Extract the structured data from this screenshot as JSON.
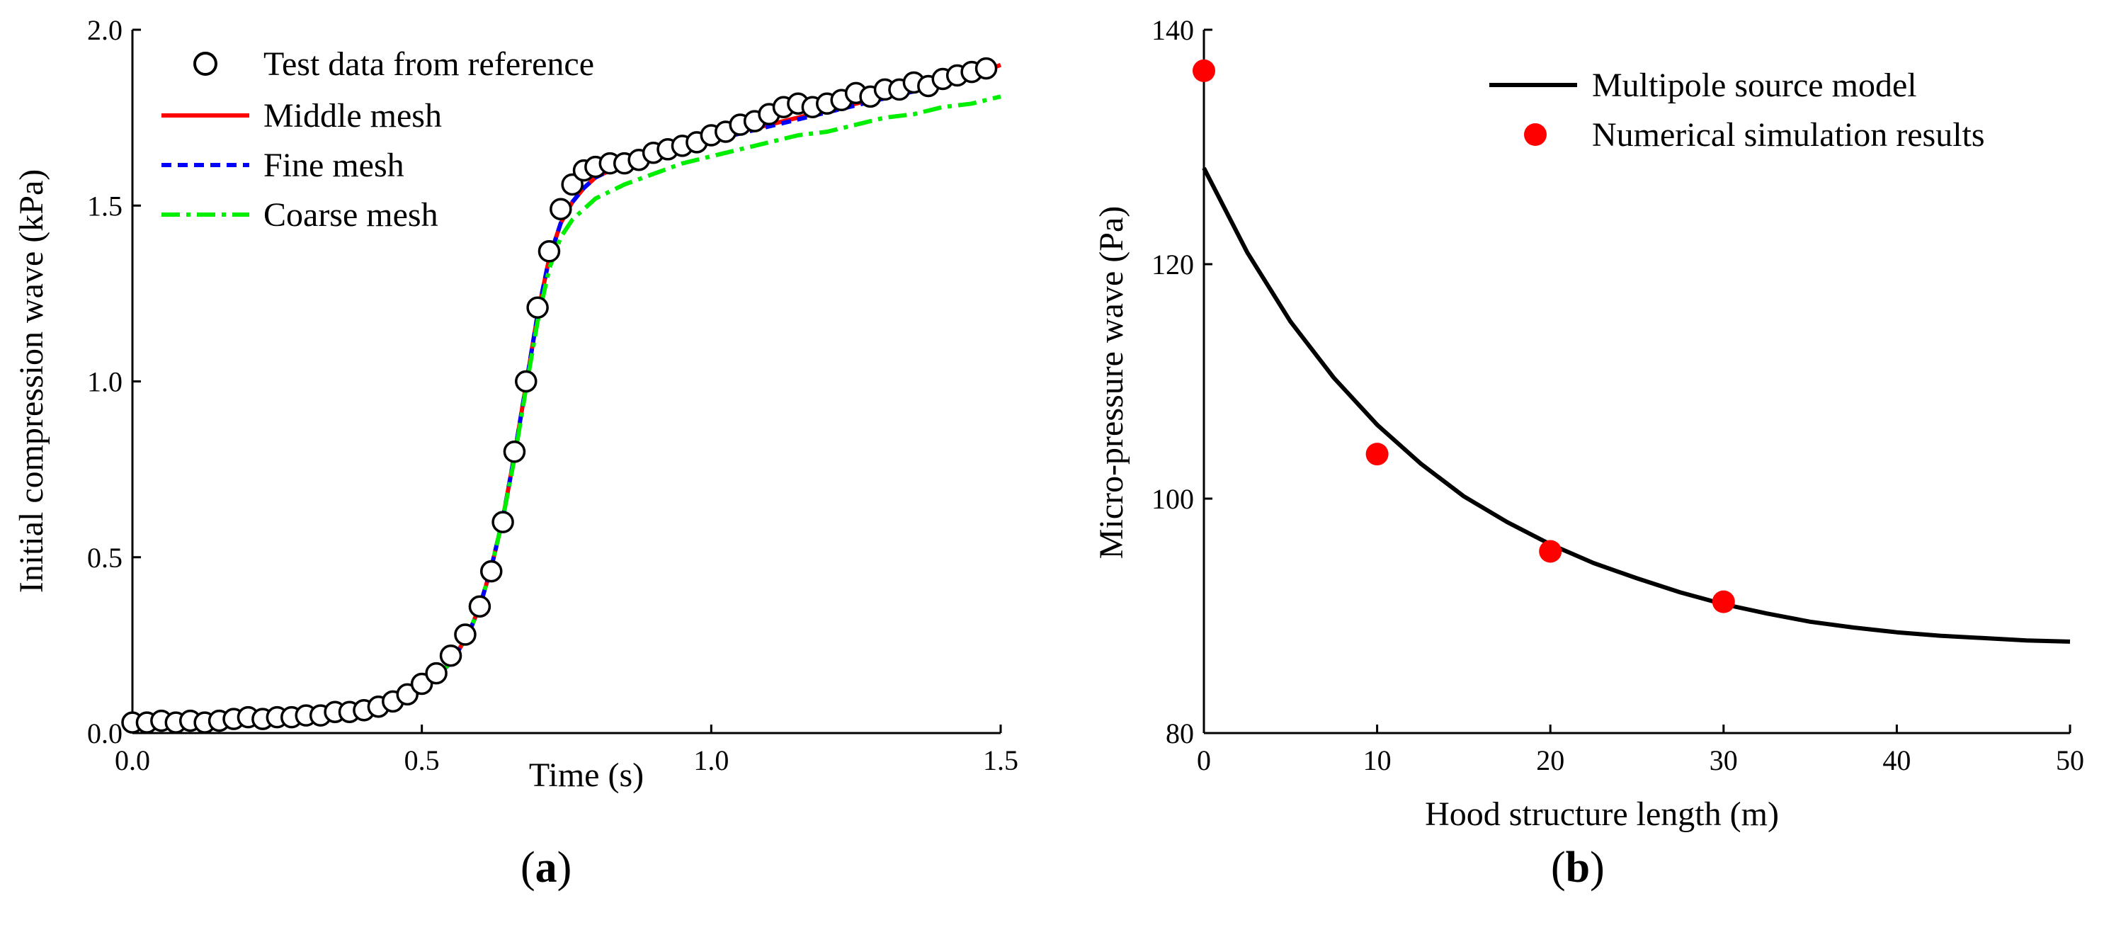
{
  "chart_data": [
    {
      "type": "line",
      "panel": "(a)",
      "panel_label_parts": [
        "(",
        "a",
        ")"
      ],
      "xlabel": "Time (s)",
      "ylabel": "Initial compression wave (kPa)",
      "xlim": [
        0,
        1.5
      ],
      "ylim": [
        0,
        2.0
      ],
      "xticks": [
        0,
        0.5,
        1.0,
        1.5
      ],
      "xtick_labels": [
        "0.0",
        "0.5",
        "1.0",
        "1.5"
      ],
      "yticks": [
        0,
        0.5,
        1.0,
        1.5,
        2.0
      ],
      "ytick_labels": [
        "0.0",
        "0.5",
        "1.0",
        "1.5",
        "2.0"
      ],
      "legend_position": "top-left",
      "series": [
        {
          "name": "Test data from reference",
          "style": "open-circle",
          "color": "#000000",
          "x": [
            0.0,
            0.025,
            0.05,
            0.075,
            0.1,
            0.125,
            0.15,
            0.175,
            0.2,
            0.225,
            0.25,
            0.275,
            0.3,
            0.325,
            0.35,
            0.375,
            0.4,
            0.425,
            0.45,
            0.475,
            0.5,
            0.525,
            0.55,
            0.575,
            0.6,
            0.62,
            0.64,
            0.66,
            0.68,
            0.7,
            0.72,
            0.74,
            0.76,
            0.78,
            0.8,
            0.825,
            0.85,
            0.875,
            0.9,
            0.925,
            0.95,
            0.975,
            1.0,
            1.025,
            1.05,
            1.075,
            1.1,
            1.125,
            1.15,
            1.175,
            1.2,
            1.225,
            1.25,
            1.275,
            1.3,
            1.325,
            1.35,
            1.375,
            1.4,
            1.425,
            1.45,
            1.475
          ],
          "y": [
            0.03,
            0.03,
            0.035,
            0.03,
            0.035,
            0.03,
            0.035,
            0.04,
            0.045,
            0.04,
            0.045,
            0.045,
            0.05,
            0.05,
            0.06,
            0.06,
            0.065,
            0.075,
            0.09,
            0.11,
            0.14,
            0.17,
            0.22,
            0.28,
            0.36,
            0.46,
            0.6,
            0.8,
            1.0,
            1.21,
            1.37,
            1.49,
            1.56,
            1.6,
            1.61,
            1.62,
            1.62,
            1.63,
            1.65,
            1.66,
            1.67,
            1.68,
            1.7,
            1.71,
            1.73,
            1.74,
            1.76,
            1.78,
            1.79,
            1.78,
            1.79,
            1.8,
            1.82,
            1.81,
            1.83,
            1.83,
            1.85,
            1.84,
            1.86,
            1.87,
            1.88,
            1.89
          ]
        },
        {
          "name": "Middle mesh",
          "style": "solid",
          "color": "#ff0000",
          "x": [
            0.0,
            0.05,
            0.1,
            0.15,
            0.2,
            0.25,
            0.3,
            0.35,
            0.4,
            0.45,
            0.5,
            0.55,
            0.58,
            0.6,
            0.62,
            0.64,
            0.66,
            0.68,
            0.7,
            0.72,
            0.74,
            0.76,
            0.78,
            0.8,
            0.85,
            0.9,
            0.95,
            1.0,
            1.05,
            1.1,
            1.15,
            1.2,
            1.25,
            1.3,
            1.35,
            1.4,
            1.45,
            1.5
          ],
          "y": [
            0.015,
            0.016,
            0.018,
            0.021,
            0.025,
            0.03,
            0.037,
            0.047,
            0.06,
            0.08,
            0.12,
            0.2,
            0.28,
            0.36,
            0.47,
            0.61,
            0.79,
            0.99,
            1.19,
            1.35,
            1.45,
            1.51,
            1.55,
            1.58,
            1.62,
            1.65,
            1.67,
            1.69,
            1.71,
            1.73,
            1.75,
            1.77,
            1.79,
            1.81,
            1.83,
            1.85,
            1.87,
            1.9
          ]
        },
        {
          "name": "Fine mesh",
          "style": "dashed",
          "color": "#0000ff",
          "x": [
            0.0,
            0.05,
            0.1,
            0.15,
            0.2,
            0.25,
            0.3,
            0.35,
            0.4,
            0.45,
            0.5,
            0.55,
            0.58,
            0.6,
            0.62,
            0.64,
            0.66,
            0.68,
            0.7,
            0.72,
            0.74,
            0.76,
            0.78,
            0.8,
            0.85,
            0.9,
            0.95,
            1.0,
            1.05,
            1.1,
            1.15,
            1.2,
            1.25,
            1.3,
            1.35,
            1.4,
            1.45,
            1.5
          ],
          "y": [
            0.015,
            0.016,
            0.018,
            0.021,
            0.025,
            0.03,
            0.037,
            0.047,
            0.06,
            0.08,
            0.12,
            0.2,
            0.28,
            0.36,
            0.47,
            0.61,
            0.79,
            0.99,
            1.19,
            1.35,
            1.45,
            1.51,
            1.55,
            1.58,
            1.62,
            1.645,
            1.665,
            1.685,
            1.705,
            1.725,
            1.745,
            1.765,
            1.785,
            1.805,
            1.825,
            1.845,
            1.865,
            1.89
          ]
        },
        {
          "name": "Coarse mesh",
          "style": "dash-dot",
          "color": "#00ee00",
          "x": [
            0.0,
            0.05,
            0.1,
            0.15,
            0.2,
            0.25,
            0.3,
            0.35,
            0.4,
            0.45,
            0.5,
            0.55,
            0.58,
            0.6,
            0.62,
            0.64,
            0.66,
            0.68,
            0.7,
            0.72,
            0.74,
            0.76,
            0.78,
            0.8,
            0.85,
            0.9,
            0.95,
            1.0,
            1.05,
            1.1,
            1.15,
            1.2,
            1.25,
            1.3,
            1.35,
            1.4,
            1.45,
            1.5
          ],
          "y": [
            0.02,
            0.021,
            0.023,
            0.026,
            0.03,
            0.035,
            0.042,
            0.052,
            0.065,
            0.085,
            0.125,
            0.2,
            0.28,
            0.36,
            0.47,
            0.61,
            0.78,
            0.98,
            1.17,
            1.32,
            1.41,
            1.46,
            1.49,
            1.52,
            1.56,
            1.59,
            1.62,
            1.64,
            1.66,
            1.68,
            1.7,
            1.71,
            1.73,
            1.75,
            1.76,
            1.78,
            1.79,
            1.81
          ]
        }
      ]
    },
    {
      "type": "line",
      "panel": "(b)",
      "panel_label_parts": [
        "(",
        "b",
        ")"
      ],
      "xlabel": "Hood structure length (m)",
      "ylabel": "Micro-pressure wave (Pa)",
      "xlim": [
        0,
        50
      ],
      "ylim": [
        80,
        140
      ],
      "xticks": [
        0,
        10,
        20,
        30,
        40,
        50
      ],
      "xtick_labels": [
        "0",
        "10",
        "20",
        "30",
        "40",
        "50"
      ],
      "yticks": [
        80,
        100,
        120,
        140
      ],
      "ytick_labels": [
        "80",
        "100",
        "120",
        "140"
      ],
      "legend_position": "top-right",
      "series": [
        {
          "name": "Multipole source model",
          "style": "solid",
          "color": "#000000",
          "x": [
            0,
            2.5,
            5,
            7.5,
            10,
            12.5,
            15,
            17.5,
            20,
            22.5,
            25,
            27.5,
            30,
            32.5,
            35,
            37.5,
            40,
            42.5,
            45,
            47.5,
            50
          ],
          "y": [
            128.2,
            121.0,
            115.1,
            110.3,
            106.3,
            103.0,
            100.2,
            98.0,
            96.1,
            94.5,
            93.2,
            92.0,
            91.0,
            90.2,
            89.5,
            89.0,
            88.6,
            88.3,
            88.1,
            87.9,
            87.8
          ]
        },
        {
          "name": "Numerical simulation results",
          "style": "filled-circle",
          "color": "#ff0000",
          "x": [
            0,
            10,
            20,
            30
          ],
          "y": [
            136.5,
            103.8,
            95.5,
            91.2
          ]
        }
      ]
    }
  ]
}
